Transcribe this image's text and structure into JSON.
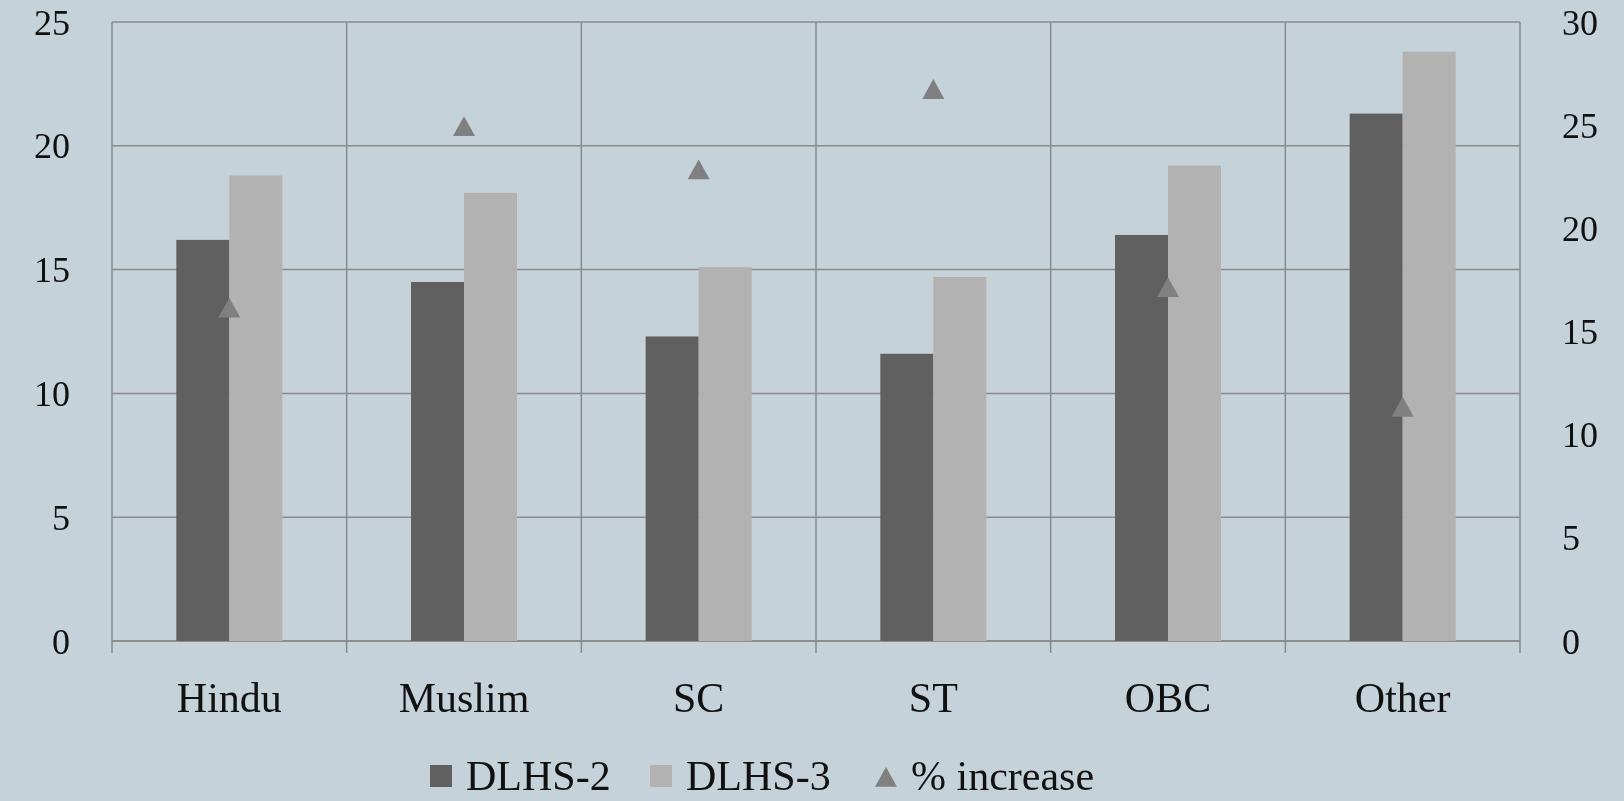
{
  "chart_data": {
    "type": "bar",
    "categories": [
      "Hindu",
      "Muslim",
      "SC",
      "ST",
      "OBC",
      "Other"
    ],
    "series": [
      {
        "name": "DLHS-2",
        "color": "#606060",
        "values": [
          16.2,
          14.5,
          12.3,
          11.6,
          16.4,
          21.3
        ]
      },
      {
        "name": "DLHS-3",
        "color": "#b2b2b2",
        "values": [
          18.8,
          18.1,
          15.1,
          14.7,
          19.2,
          23.8
        ]
      },
      {
        "name": "% increase",
        "type": "scatter",
        "axis": "y2",
        "color": "#808080",
        "marker": "triangle",
        "values": [
          16.1,
          24.9,
          22.8,
          26.7,
          17.1,
          11.3
        ]
      }
    ],
    "ylim": [
      0,
      25
    ],
    "yticks": [
      0,
      5,
      10,
      15,
      20,
      25
    ],
    "y2lim": [
      0,
      30
    ],
    "y2ticks": [
      0,
      5,
      10,
      15,
      20,
      25,
      30
    ],
    "grid": true,
    "legend": "bottom"
  }
}
